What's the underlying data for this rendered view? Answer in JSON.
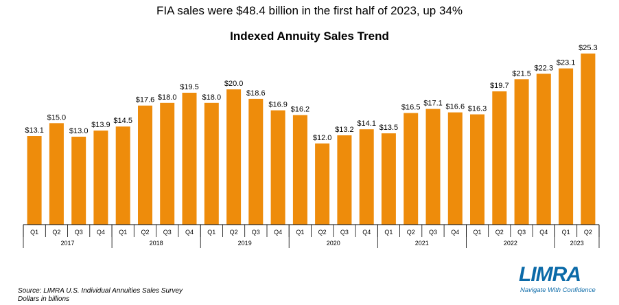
{
  "headline": "FIA sales were $48.4 billion in the first half of 2023,  up 34%",
  "source_lines": [
    "Source: LIMRA U.S. Individual  Annuities Sales Survey",
    "Dollars in billions"
  ],
  "logo": {
    "word": "LIMRA",
    "tagline": "Navigate With Confidence",
    "color": "#0b6aa8"
  },
  "colors": {
    "bar": "#ee8c0b",
    "axis": "#000000"
  },
  "chart_data": {
    "type": "bar",
    "title": "Indexed Annuity Sales Trend",
    "xlabel": "",
    "ylabel": "",
    "grid": false,
    "ylim": [
      0,
      26
    ],
    "categories": [
      "Q1",
      "Q2",
      "Q3",
      "Q4",
      "Q1",
      "Q2",
      "Q3",
      "Q4",
      "Q1",
      "Q2",
      "Q3",
      "Q4",
      "Q1",
      "Q2",
      "Q3",
      "Q4",
      "Q1",
      "Q2",
      "Q3",
      "Q4",
      "Q1",
      "Q2",
      "Q3",
      "Q4",
      "Q1",
      "Q2"
    ],
    "values": [
      13.1,
      15.0,
      13.0,
      13.9,
      14.5,
      17.6,
      18.0,
      19.5,
      18.0,
      20.0,
      18.6,
      16.9,
      16.2,
      12.0,
      13.2,
      14.1,
      13.5,
      16.5,
      17.1,
      16.6,
      16.3,
      19.7,
      21.5,
      22.3,
      23.1,
      25.3
    ],
    "data_labels": [
      "$13.1",
      "$15.0",
      "$13.0",
      "$13.9",
      "$14.5",
      "$17.6",
      "$18.0",
      "$19.5",
      "$18.0",
      "$20.0",
      "$18.6",
      "$16.9",
      "$16.2",
      "$12.0",
      "$13.2",
      "$14.1",
      "$13.5",
      "$16.5",
      "$17.1",
      "$16.6",
      "$16.3",
      "$19.7",
      "$21.5",
      "$22.3",
      "$23.1",
      "$25.3"
    ],
    "groups": [
      {
        "label": "2017",
        "count": 4
      },
      {
        "label": "2018",
        "count": 4
      },
      {
        "label": "2019",
        "count": 4
      },
      {
        "label": "2020",
        "count": 4
      },
      {
        "label": "2021",
        "count": 4
      },
      {
        "label": "2022",
        "count": 4
      },
      {
        "label": "2023",
        "count": 2
      }
    ]
  }
}
